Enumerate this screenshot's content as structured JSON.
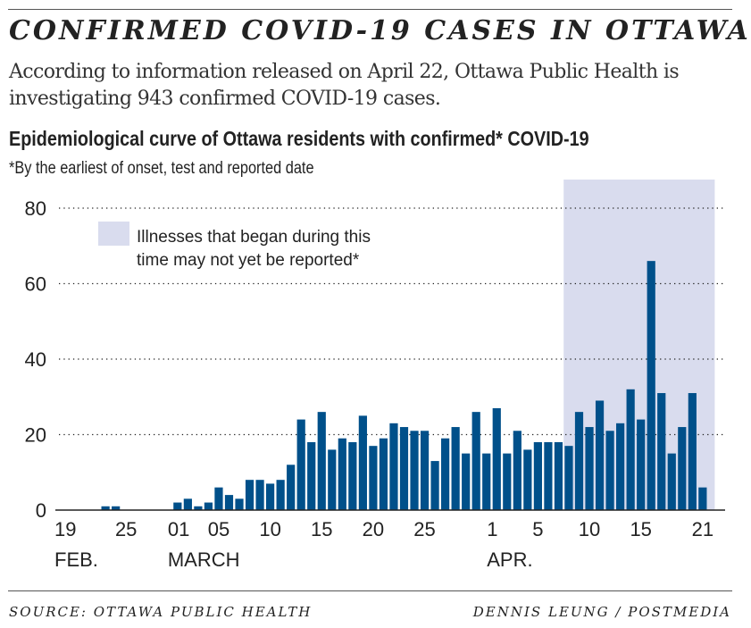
{
  "title": "CONFIRMED COVID-19 CASES IN OTTAWA",
  "intro": "According to information released on April 22, Ottawa Public Health is investigating 943 confirmed COVID-19 cases.",
  "footer": {
    "source": "SOURCE: OTTAWA PUBLIC HEALTH",
    "credit": "DENNIS LEUNG / POSTMEDIA"
  },
  "chart_data": {
    "type": "bar",
    "title": "Epidemiological curve of Ottawa residents with confirmed* COVID-19",
    "subtitle": "*By the earliest of onset, test and reported date",
    "ylim": [
      0,
      80
    ],
    "yticks": [
      0,
      20,
      40,
      60,
      80
    ],
    "grid": "horizontal dotted",
    "bar_color": "#00508a",
    "shade_color": "#d9dcee",
    "categories": [
      "Feb 19",
      "Feb 20",
      "Feb 21",
      "Feb 22",
      "Feb 23",
      "Feb 24",
      "Feb 25",
      "Feb 26",
      "Feb 27",
      "Feb 28",
      "Feb 29",
      "Mar 1",
      "Mar 2",
      "Mar 3",
      "Mar 4",
      "Mar 5",
      "Mar 6",
      "Mar 7",
      "Mar 8",
      "Mar 9",
      "Mar 10",
      "Mar 11",
      "Mar 12",
      "Mar 13",
      "Mar 14",
      "Mar 15",
      "Mar 16",
      "Mar 17",
      "Mar 18",
      "Mar 19",
      "Mar 20",
      "Mar 21",
      "Mar 22",
      "Mar 23",
      "Mar 24",
      "Mar 25",
      "Mar 26",
      "Mar 27",
      "Mar 28",
      "Mar 29",
      "Mar 30",
      "Mar 31",
      "Apr 1",
      "Apr 2",
      "Apr 3",
      "Apr 4",
      "Apr 5",
      "Apr 6",
      "Apr 7",
      "Apr 8",
      "Apr 9",
      "Apr 10",
      "Apr 11",
      "Apr 12",
      "Apr 13",
      "Apr 14",
      "Apr 15",
      "Apr 16",
      "Apr 17",
      "Apr 18",
      "Apr 19",
      "Apr 20",
      "Apr 21"
    ],
    "values": [
      0,
      0,
      0,
      0,
      1,
      1,
      0,
      0,
      0,
      0,
      0,
      2,
      3,
      1,
      2,
      6,
      4,
      3,
      8,
      8,
      7,
      8,
      12,
      24,
      18,
      26,
      16,
      19,
      18,
      25,
      17,
      19,
      23,
      22,
      21,
      21,
      13,
      19,
      22,
      15,
      26,
      15,
      27,
      15,
      21,
      16,
      18,
      18,
      18,
      17,
      26,
      22,
      29,
      21,
      23,
      32,
      24,
      66,
      31,
      15,
      22,
      31,
      6
    ],
    "xtick_labels": [
      {
        "date": "Feb 19",
        "label": "19",
        "month": "FEB."
      },
      {
        "date": "Feb 25",
        "label": "25"
      },
      {
        "date": "Mar 1",
        "label": "01",
        "month": "MARCH"
      },
      {
        "date": "Mar 5",
        "label": "05"
      },
      {
        "date": "Mar 10",
        "label": "10"
      },
      {
        "date": "Mar 15",
        "label": "15"
      },
      {
        "date": "Mar 20",
        "label": "20"
      },
      {
        "date": "Mar 25",
        "label": "25"
      },
      {
        "date": "Apr 1",
        "label": "1",
        "month": "APR."
      },
      {
        "date": "Apr 5",
        "label": "5"
      },
      {
        "date": "Apr 10",
        "label": "10"
      },
      {
        "date": "Apr 15",
        "label": "15"
      },
      {
        "date": "Apr 21",
        "label": "21"
      }
    ],
    "shaded_range": [
      "Apr 8",
      "Apr 22"
    ],
    "legend": {
      "label_line1": "Illnesses that began during this",
      "label_line2": "time may not yet be reported*",
      "placement": "top-left"
    }
  }
}
